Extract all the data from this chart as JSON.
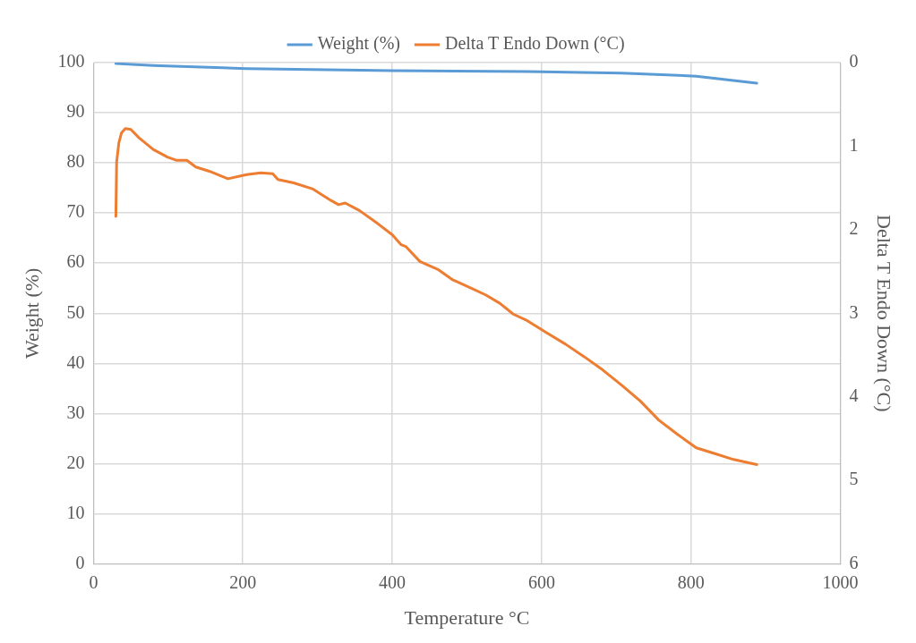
{
  "chart_data": {
    "type": "line",
    "xlabel": "Temperature °C",
    "ylabel": "Weight (%)",
    "y2label": "Delta T Endo Down (°C)",
    "xlim": [
      0,
      1000
    ],
    "xticks": [
      0,
      200,
      400,
      600,
      800,
      1000
    ],
    "ylim": [
      0,
      100
    ],
    "yticks": [
      0,
      10,
      20,
      30,
      40,
      50,
      60,
      70,
      80,
      90,
      100
    ],
    "y2lim": [
      6,
      0
    ],
    "y2ticks": [
      0,
      1,
      2,
      3,
      4,
      5,
      6
    ],
    "grid": true,
    "legend": "top",
    "marker": "none",
    "line_style": "solid",
    "series": [
      {
        "name": "Weight (%)",
        "color": "#5b9bd5",
        "x": [
          30,
          80,
          205,
          400,
          581,
          707,
          807,
          888
        ],
        "values": [
          99.8,
          99.4,
          98.8,
          98.4,
          98.2,
          97.9,
          97.3,
          95.9
        ]
      },
      {
        "name": "Delta T Endo Down (°C)",
        "color": "#ed7d31",
        "axis": "y2",
        "x": [
          30,
          31,
          34,
          37.6,
          42.6,
          50,
          61,
          80,
          99,
          111.5,
          125,
          137,
          155,
          180,
          205,
          224,
          240,
          247,
          268,
          293,
          318,
          328,
          337,
          356,
          381,
          400,
          412,
          418,
          437,
          462,
          481,
          506,
          525,
          544,
          562,
          581,
          606,
          632,
          657,
          682,
          707,
          732,
          757,
          782,
          807,
          832,
          857,
          888
        ],
        "values": [
          1.84,
          1.19,
          0.96,
          0.84,
          0.79,
          0.8,
          0.9,
          1.04,
          1.13,
          1.17,
          1.17,
          1.25,
          1.3,
          1.39,
          1.34,
          1.32,
          1.33,
          1.4,
          1.44,
          1.51,
          1.65,
          1.7,
          1.68,
          1.77,
          1.93,
          2.06,
          2.18,
          2.2,
          2.38,
          2.48,
          2.6,
          2.7,
          2.78,
          2.88,
          3.01,
          3.09,
          3.23,
          3.37,
          3.52,
          3.68,
          3.86,
          4.05,
          4.28,
          4.45,
          4.61,
          4.68,
          4.75,
          4.81
        ]
      }
    ]
  }
}
